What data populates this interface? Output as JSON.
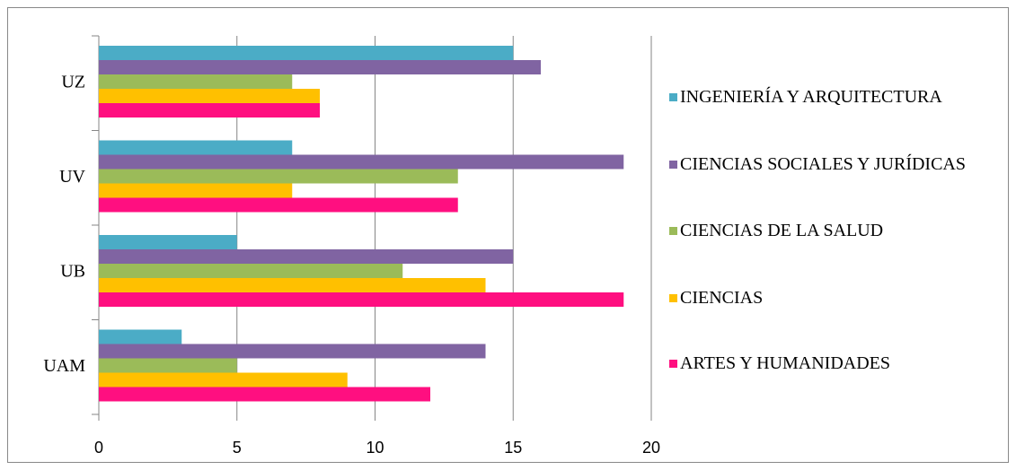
{
  "chart_data": {
    "type": "bar",
    "orientation": "horizontal",
    "categories": [
      "UAM",
      "UB",
      "UV",
      "UZ"
    ],
    "series": [
      {
        "name": "INGENIERÍA Y ARQUITECTURA",
        "color": "#4bacc6",
        "values": [
          3,
          5,
          7,
          15
        ]
      },
      {
        "name": "CIENCIAS SOCIALES Y JURÍDICAS",
        "color": "#8064a2",
        "values": [
          14,
          15,
          19,
          16
        ]
      },
      {
        "name": "CIENCIAS DE LA SALUD",
        "color": "#9bbb59",
        "values": [
          5,
          11,
          13,
          7
        ]
      },
      {
        "name": "CIENCIAS",
        "color": "#ffc000",
        "values": [
          9,
          14,
          7,
          8
        ]
      },
      {
        "name": "ARTES Y HUMANIDADES",
        "color": "#ff0f80",
        "values": [
          12,
          19,
          13,
          8
        ]
      }
    ],
    "xlim": [
      0,
      20
    ],
    "xticks": [
      0,
      5,
      10,
      15,
      20
    ],
    "grid": true,
    "legend": "right"
  }
}
